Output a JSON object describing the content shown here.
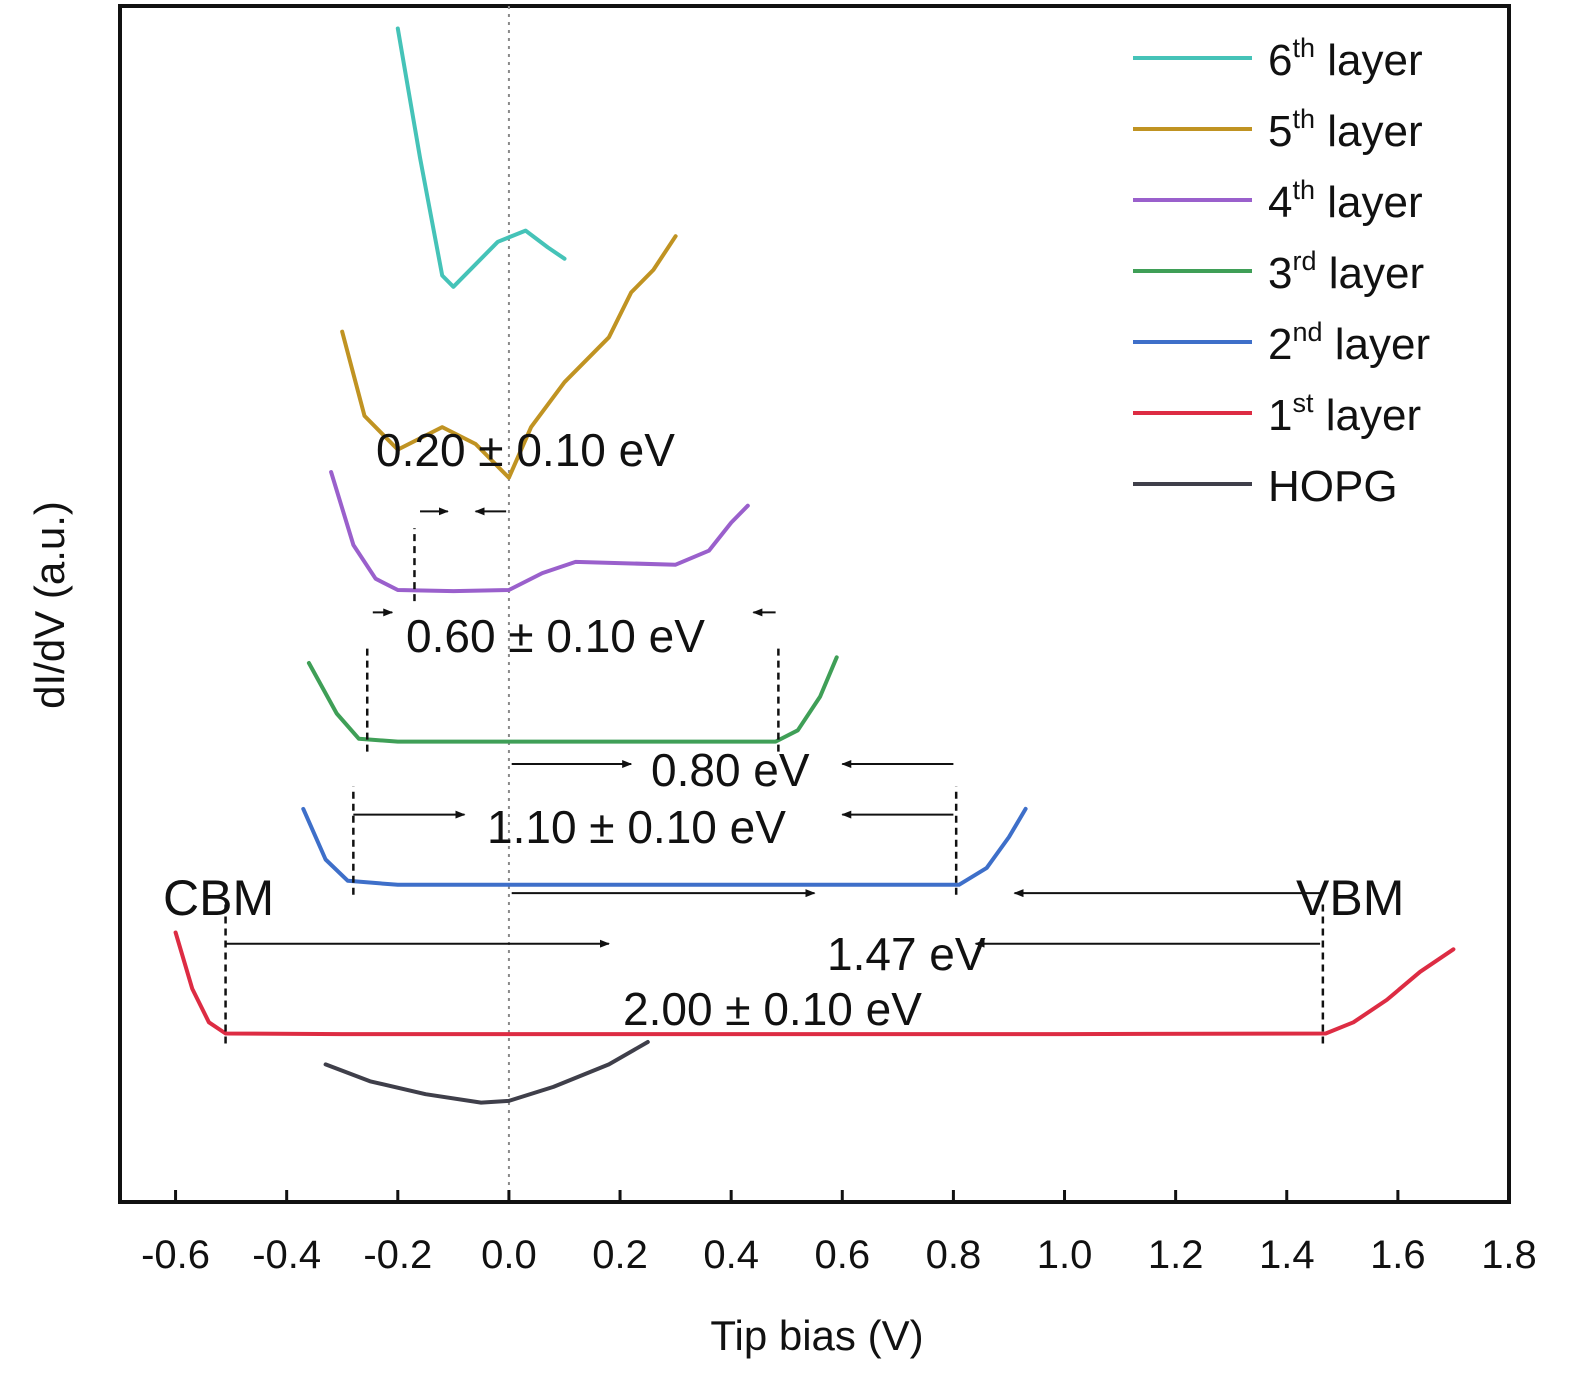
{
  "chart_data": {
    "type": "line",
    "xlabel": "Tip bias (V)",
    "ylabel": "dI/dV (a.u.)",
    "xlim": [
      -0.7,
      1.8
    ],
    "x_ticks": [
      -0.6,
      -0.4,
      -0.2,
      0.0,
      0.2,
      0.4,
      0.6,
      0.8,
      1.0,
      1.2,
      1.4,
      1.6,
      1.8
    ],
    "x_tick_labels": [
      "-0.6",
      "-0.4",
      "-0.2",
      "0.0",
      "0.2",
      "0.4",
      "0.6",
      "0.8",
      "1.0",
      "1.2",
      "1.4",
      "1.6",
      "1.8"
    ],
    "y_ticks_shown": false,
    "zero_reference_line": 0.0,
    "legend_placement": "top-right",
    "series": [
      {
        "name": "6",
        "suffix": "th",
        "rest": " layer",
        "color": "#45c3b8",
        "points": [
          [
            -0.2,
            20.9
          ],
          [
            -0.16,
            18.6
          ],
          [
            -0.12,
            16.5
          ],
          [
            -0.1,
            16.3
          ],
          [
            -0.06,
            16.7
          ],
          [
            -0.02,
            17.1
          ],
          [
            0.03,
            17.3
          ],
          [
            0.07,
            17.0
          ],
          [
            0.1,
            16.8
          ]
        ]
      },
      {
        "name": "5",
        "suffix": "th",
        "rest": " layer",
        "color": "#c09322",
        "points": [
          [
            -0.3,
            15.5
          ],
          [
            -0.26,
            14.0
          ],
          [
            -0.2,
            13.4
          ],
          [
            -0.12,
            13.8
          ],
          [
            -0.06,
            13.5
          ],
          [
            0.0,
            12.9
          ],
          [
            0.04,
            13.8
          ],
          [
            0.1,
            14.6
          ],
          [
            0.18,
            15.4
          ],
          [
            0.22,
            16.2
          ],
          [
            0.26,
            16.6
          ],
          [
            0.3,
            17.2
          ]
        ]
      },
      {
        "name": "4",
        "suffix": "th",
        "rest": " layer",
        "color": "#9a60cc",
        "points": [
          [
            -0.32,
            13.0
          ],
          [
            -0.28,
            11.7
          ],
          [
            -0.24,
            11.1
          ],
          [
            -0.2,
            10.9
          ],
          [
            -0.1,
            10.88
          ],
          [
            0.0,
            10.9
          ],
          [
            0.06,
            11.2
          ],
          [
            0.12,
            11.4
          ],
          [
            0.3,
            11.35
          ],
          [
            0.36,
            11.6
          ],
          [
            0.4,
            12.1
          ],
          [
            0.43,
            12.4
          ]
        ]
      },
      {
        "name": "3",
        "suffix": "rd",
        "rest": " layer",
        "color": "#3f9f57",
        "points": [
          [
            -0.36,
            9.6
          ],
          [
            -0.31,
            8.7
          ],
          [
            -0.27,
            8.25
          ],
          [
            -0.2,
            8.2
          ],
          [
            0.2,
            8.2
          ],
          [
            0.48,
            8.2
          ],
          [
            0.52,
            8.4
          ],
          [
            0.56,
            9.0
          ],
          [
            0.59,
            9.7
          ]
        ]
      },
      {
        "name": "2",
        "suffix": "nd",
        "rest": " layer",
        "color": "#3e6fc9",
        "points": [
          [
            -0.37,
            7.0
          ],
          [
            -0.33,
            6.1
          ],
          [
            -0.29,
            5.72
          ],
          [
            -0.2,
            5.65
          ],
          [
            0.4,
            5.65
          ],
          [
            0.81,
            5.65
          ],
          [
            0.86,
            5.95
          ],
          [
            0.9,
            6.5
          ],
          [
            0.93,
            7.0
          ]
        ]
      },
      {
        "name": "1",
        "suffix": "st",
        "rest": " layer",
        "color": "#dd2c43",
        "points": [
          [
            -0.6,
            4.8
          ],
          [
            -0.57,
            3.8
          ],
          [
            -0.54,
            3.2
          ],
          [
            -0.51,
            3.0
          ],
          [
            -0.3,
            2.99
          ],
          [
            0.5,
            2.99
          ],
          [
            1.0,
            2.99
          ],
          [
            1.47,
            3.0
          ],
          [
            1.52,
            3.2
          ],
          [
            1.58,
            3.6
          ],
          [
            1.64,
            4.1
          ],
          [
            1.7,
            4.5
          ]
        ]
      },
      {
        "name": "HOPG",
        "suffix": "",
        "rest": "",
        "color": "#3f3f4a",
        "points": [
          [
            -0.33,
            2.45
          ],
          [
            -0.25,
            2.15
          ],
          [
            -0.15,
            1.92
          ],
          [
            -0.05,
            1.77
          ],
          [
            0.0,
            1.8
          ],
          [
            0.08,
            2.05
          ],
          [
            0.18,
            2.45
          ],
          [
            0.25,
            2.85
          ]
        ]
      }
    ],
    "annotations": [
      {
        "text": "0.20 ± 0.10 eV"
      },
      {
        "text": "0.60 ± 0.10 eV"
      },
      {
        "text": "0.80 eV"
      },
      {
        "text": "1.10 ± 0.10 eV"
      },
      {
        "text": "1.47 eV"
      },
      {
        "text": "2.00 ± 0.10 eV"
      },
      {
        "text": "CBM"
      },
      {
        "text": "VBM"
      }
    ]
  }
}
